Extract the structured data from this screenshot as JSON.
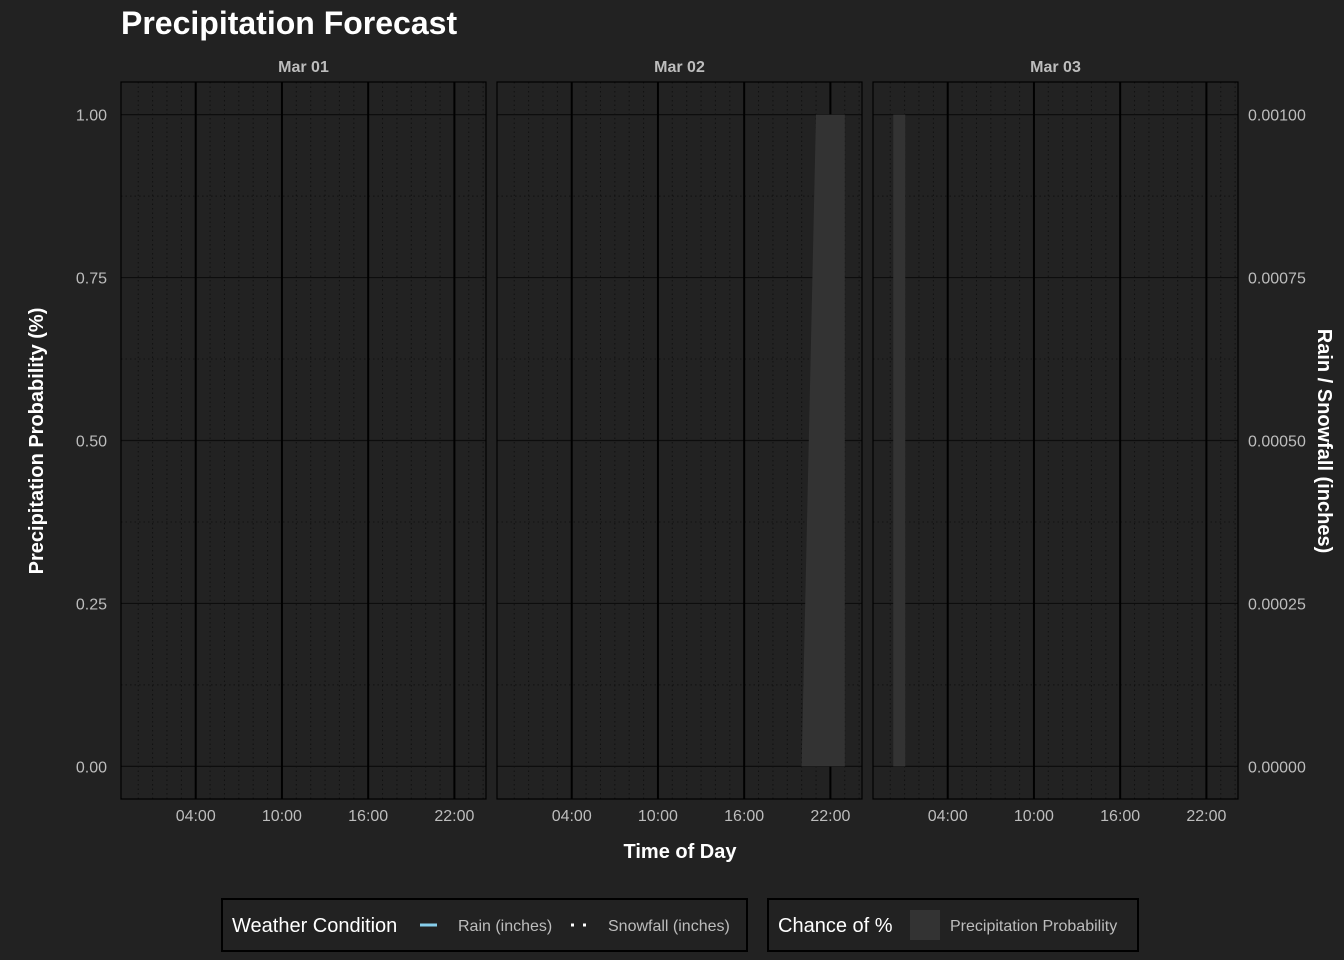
{
  "chart_data": {
    "type": "area",
    "title": "Precipitation Forecast",
    "xlabel": "Time of Day",
    "ylabel": "Precipitation Probability (%)",
    "ylabel_right": "Rain / Snowfall (inches)",
    "panels": [
      {
        "label": "Mar 01"
      },
      {
        "label": "Mar 02"
      },
      {
        "label": "Mar 03"
      }
    ],
    "x_range_hours": [
      -1.2,
      24.2
    ],
    "x_ticks": [
      {
        "hour": 4,
        "label": "04:00"
      },
      {
        "hour": 10,
        "label": "10:00"
      },
      {
        "hour": 16,
        "label": "16:00"
      },
      {
        "hour": 22,
        "label": "22:00"
      }
    ],
    "ylim": [
      -0.05,
      1.05
    ],
    "y_ticks_left": [
      {
        "value": 0.0,
        "label": "0.00"
      },
      {
        "value": 0.25,
        "label": "0.25"
      },
      {
        "value": 0.5,
        "label": "0.50"
      },
      {
        "value": 0.75,
        "label": "0.75"
      },
      {
        "value": 1.0,
        "label": "1.00"
      }
    ],
    "y_ticks_right": [
      {
        "value": 0.0,
        "label": "0.00000"
      },
      {
        "value": 0.25,
        "label": "0.00025"
      },
      {
        "value": 0.5,
        "label": "0.00050"
      },
      {
        "value": 0.75,
        "label": "0.00075"
      },
      {
        "value": 1.0,
        "label": "0.00100"
      }
    ],
    "series": [
      {
        "name": "Precipitation Probability",
        "kind": "area",
        "color": "#333333",
        "points": [
          {
            "panel": 1,
            "hour": 20.0,
            "value": 0.0
          },
          {
            "panel": 1,
            "hour": 21.0,
            "value": 1.0
          },
          {
            "panel": 1,
            "hour": 23.0,
            "value": 1.0
          },
          {
            "panel": 1,
            "hour": 23.0,
            "value": 0.0
          },
          {
            "panel": 2,
            "hour": 0.0,
            "value": 1.0
          },
          {
            "panel": 2,
            "hour": 1.0,
            "value": 1.0
          }
        ]
      },
      {
        "name": "Rain (inches)",
        "kind": "line",
        "style": "solid",
        "color": "#87ceeb",
        "points": []
      },
      {
        "name": "Snowfall (inches)",
        "kind": "line",
        "style": "dotted",
        "color": "#ffffff",
        "points": []
      }
    ],
    "legends": [
      {
        "title": "Weather Condition",
        "items": [
          {
            "label": "Rain (inches)",
            "symbol": "line-solid",
            "color": "#87ceeb"
          },
          {
            "label": "Snowfall (inches)",
            "symbol": "line-dotted",
            "color": "#ffffff"
          }
        ]
      },
      {
        "title": "Chance of %",
        "items": [
          {
            "label": "Precipitation Probability",
            "symbol": "fill",
            "color": "#333333"
          }
        ]
      }
    ],
    "legend_position": "bottom",
    "grid": true
  }
}
